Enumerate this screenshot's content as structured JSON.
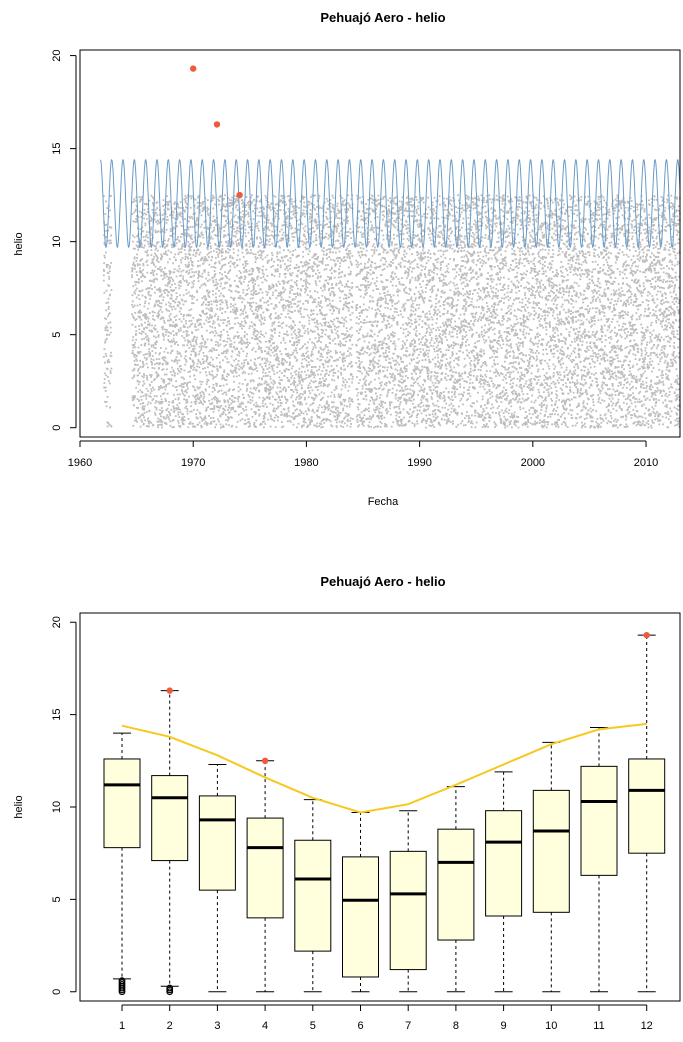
{
  "chart_data": [
    {
      "type": "scatter",
      "title": "Pehuajó Aero - helio",
      "xlabel": "Fecha",
      "ylabel": "helio",
      "xlim": [
        1960,
        2013
      ],
      "ylim": [
        -0.5,
        20.3
      ],
      "xticks": [
        "1960",
        "1970",
        "1980",
        "1990",
        "2000",
        "2010"
      ],
      "xtick_values": [
        1960,
        1970,
        1980,
        1990,
        2000,
        2010
      ],
      "yticks": [
        "0",
        "5",
        "10",
        "15",
        "20"
      ],
      "ytick_values": [
        0,
        5,
        10,
        15,
        20
      ],
      "observation_range": {
        "min": 0,
        "max": 12.5
      },
      "observation_periods": [
        [
          1962.1,
          1962.8
        ],
        [
          1964.6,
          1984.1
        ],
        [
          1984.4,
          2013
        ]
      ],
      "outliers": [
        {
          "x": 1970.0,
          "y": 19.3
        },
        {
          "x": 1972.1,
          "y": 16.3
        },
        {
          "x": 1974.1,
          "y": 12.5
        }
      ],
      "reference_curve": {
        "min": 9.7,
        "max": 14.4,
        "period_years": 1,
        "start": 1961.8,
        "end": 2013
      },
      "colors": {
        "observations": "#bdbdbd",
        "outliers": "#f05a3c",
        "reference": "#6a9bc8"
      }
    },
    {
      "type": "box",
      "title": "Pehuajó Aero - helio",
      "xlabel": "",
      "ylabel": "helio",
      "ylim": [
        -0.5,
        20.5
      ],
      "categories": [
        "1",
        "2",
        "3",
        "4",
        "5",
        "6",
        "7",
        "8",
        "9",
        "10",
        "11",
        "12"
      ],
      "yticks": [
        "0",
        "5",
        "10",
        "15",
        "20"
      ],
      "ytick_values": [
        0,
        5,
        10,
        15,
        20
      ],
      "boxes": [
        {
          "lower_whisker": 0.7,
          "q1": 7.8,
          "median": 11.2,
          "q3": 12.6,
          "upper_whisker": 14.0
        },
        {
          "lower_whisker": 0.3,
          "q1": 7.1,
          "median": 10.5,
          "q3": 11.7,
          "upper_whisker": 16.3
        },
        {
          "lower_whisker": 0.0,
          "q1": 5.5,
          "median": 9.3,
          "q3": 10.6,
          "upper_whisker": 12.3
        },
        {
          "lower_whisker": 0.0,
          "q1": 4.0,
          "median": 7.8,
          "q3": 9.4,
          "upper_whisker": 12.5
        },
        {
          "lower_whisker": 0.0,
          "q1": 2.2,
          "median": 6.1,
          "q3": 8.2,
          "upper_whisker": 10.4
        },
        {
          "lower_whisker": 0.0,
          "q1": 0.8,
          "median": 4.95,
          "q3": 7.3,
          "upper_whisker": 9.7
        },
        {
          "lower_whisker": 0.0,
          "q1": 1.2,
          "median": 5.3,
          "q3": 7.6,
          "upper_whisker": 9.8
        },
        {
          "lower_whisker": 0.0,
          "q1": 2.8,
          "median": 7.0,
          "q3": 8.8,
          "upper_whisker": 11.1
        },
        {
          "lower_whisker": 0.0,
          "q1": 4.1,
          "median": 8.1,
          "q3": 9.8,
          "upper_whisker": 11.9
        },
        {
          "lower_whisker": 0.0,
          "q1": 4.3,
          "median": 8.7,
          "q3": 10.9,
          "upper_whisker": 13.5
        },
        {
          "lower_whisker": 0.0,
          "q1": 6.3,
          "median": 10.3,
          "q3": 12.2,
          "upper_whisker": 14.3
        },
        {
          "lower_whisker": 0.0,
          "q1": 7.5,
          "median": 10.9,
          "q3": 12.6,
          "upper_whisker": 19.3
        }
      ],
      "low_outliers": [
        {
          "category": "1",
          "values": [
            0.0,
            0.1,
            0.2,
            0.3,
            0.4,
            0.5,
            0.6
          ]
        },
        {
          "category": "2",
          "values": [
            0.0,
            0.1,
            0.2
          ]
        }
      ],
      "highlighted_points": [
        {
          "category": "2",
          "value": 16.3
        },
        {
          "category": "4",
          "value": 12.5
        },
        {
          "category": "12",
          "value": 19.3
        }
      ],
      "reference_line": [
        14.4,
        13.8,
        12.8,
        11.6,
        10.5,
        9.7,
        10.15,
        11.2,
        12.3,
        13.4,
        14.2,
        14.5
      ],
      "colors": {
        "box_fill": "#ffffdd",
        "reference_line": "#f7c81e",
        "highlight": "#f05a3c"
      }
    }
  ]
}
